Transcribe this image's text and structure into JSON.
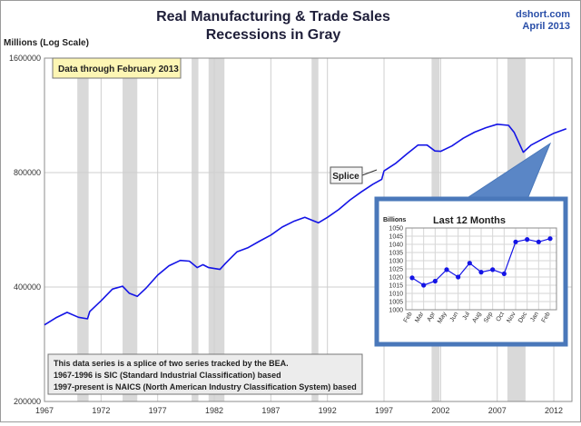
{
  "chart_data": [
    {
      "type": "line",
      "title": "Real Manufacturing & Trade Sales",
      "subtitle": "Recessions in Gray",
      "source": "dshort.com",
      "date": "April 2013",
      "ylabel": "Millions (Log Scale)",
      "xlabel": "",
      "yscale": "log",
      "ylim": [
        200000,
        1600000
      ],
      "yticks": [
        200000,
        400000,
        800000,
        1600000
      ],
      "ytick_labels": [
        "200000",
        "400000",
        "800000",
        "1600000"
      ],
      "xlim": [
        1967,
        2013.6
      ],
      "xticks": [
        1967,
        1972,
        1977,
        1982,
        1987,
        1992,
        1997,
        2002,
        2007,
        2012
      ],
      "xtick_labels": [
        "1967",
        "1972",
        "1977",
        "1982",
        "1987",
        "1992",
        "1997",
        "2002",
        "2007",
        "2012"
      ],
      "grid": true,
      "recessions": [
        [
          1969.9,
          1970.9
        ],
        [
          1973.9,
          1975.2
        ],
        [
          1980.0,
          1980.6
        ],
        [
          1981.5,
          1982.9
        ],
        [
          1990.6,
          1991.2
        ],
        [
          2001.2,
          2001.9
        ],
        [
          2007.9,
          2009.5
        ]
      ],
      "series": [
        {
          "x": [
            1967,
            1968,
            1969,
            1970,
            1970.8,
            1971,
            1972,
            1973,
            1973.9,
            1974.5,
            1975.2,
            1976,
            1977,
            1978,
            1979,
            1979.8,
            1980.5,
            1981,
            1981.5,
            1982.5,
            1983,
            1984,
            1985,
            1986,
            1987,
            1988,
            1989,
            1990,
            1990.6,
            1991.2,
            1992,
            1993,
            1994,
            1995,
            1996,
            1996.8,
            1997,
            1998,
            1999,
            2000,
            2000.8,
            2001.5,
            2002,
            2003,
            2004,
            2005,
            2006,
            2007,
            2008,
            2008.5,
            2009.3,
            2010,
            2011,
            2012,
            2013.1
          ],
          "values": [
            318000,
            332000,
            343000,
            333000,
            330000,
            345000,
            368000,
            395000,
            402000,
            385000,
            378000,
            398000,
            430000,
            455000,
            470000,
            468000,
            450000,
            458000,
            450000,
            445000,
            462000,
            495000,
            508000,
            528000,
            548000,
            575000,
            595000,
            610000,
            600000,
            590000,
            610000,
            640000,
            678000,
            712000,
            745000,
            768000,
            808000,
            845000,
            895000,
            945000,
            945000,
            912000,
            910000,
            940000,
            985000,
            1022000,
            1050000,
            1072000,
            1065000,
            1020000,
            905000,
            945000,
            980000,
            1015000,
            1043000
          ]
        }
      ],
      "annotations": [
        "Data through February 2013",
        "Splice"
      ],
      "note_lines": [
        "This data series is a splice of two series tracked by the BEA.",
        "1967-1996  is SIC (Standard Industrial Classification) based",
        "1997-present is NAICS  (North American Industry Classification System) based"
      ]
    },
    {
      "type": "line",
      "title": "Last 12 Months",
      "ylabel": "Billions",
      "ylim": [
        1000,
        1050
      ],
      "yticks": [
        1000,
        1005,
        1010,
        1015,
        1020,
        1025,
        1030,
        1035,
        1040,
        1045,
        1050
      ],
      "categories": [
        "Feb",
        "Mar",
        "Apr",
        "May",
        "Jun",
        "Jul",
        "Aug",
        "Sep",
        "Oct",
        "Nov",
        "Dec",
        "Jan",
        "Feb"
      ],
      "values": [
        1019.5,
        1015,
        1017.5,
        1024.5,
        1020,
        1028.5,
        1023,
        1024.5,
        1022,
        1041.5,
        1043,
        1041.5,
        1043.5
      ],
      "grid": true
    }
  ]
}
